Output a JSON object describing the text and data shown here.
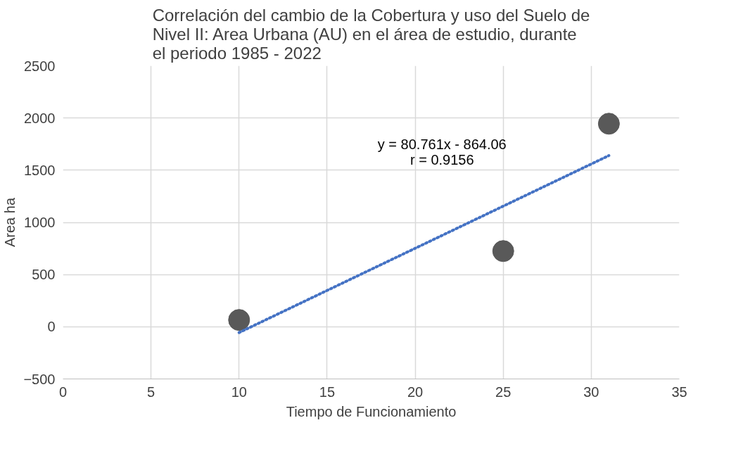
{
  "chart_data": {
    "type": "scatter",
    "title": "Correlación del cambio de la Cobertura y uso del Suelo de Nivel II: Area Urbana (AU) en el área de estudio, durante el periodo 1985 - 2022",
    "xlabel": "Tiempo de Funcionamiento",
    "ylabel": "Area ha",
    "x": [
      10,
      25,
      31
    ],
    "series": [
      {
        "color": "#595959",
        "values": [
          65,
          725,
          1945
        ]
      },
      {
        "type": "line",
        "color": "#4472c4",
        "line_style": "dotted",
        "marker": "none",
        "x": [
          10,
          31
        ],
        "values": [
          -56,
          1640
        ]
      }
    ],
    "annotations": [
      "y = 80.761x - 864.06",
      "r = 0.9156"
    ],
    "marker": "circle",
    "xlim": [
      0,
      35
    ],
    "xticks": [
      0,
      5,
      10,
      15,
      20,
      25,
      30,
      35
    ],
    "ylim": [
      -500,
      2500
    ],
    "yticks": [
      -500,
      0,
      500,
      1000,
      1500,
      2000,
      2500
    ],
    "grid": true
  }
}
